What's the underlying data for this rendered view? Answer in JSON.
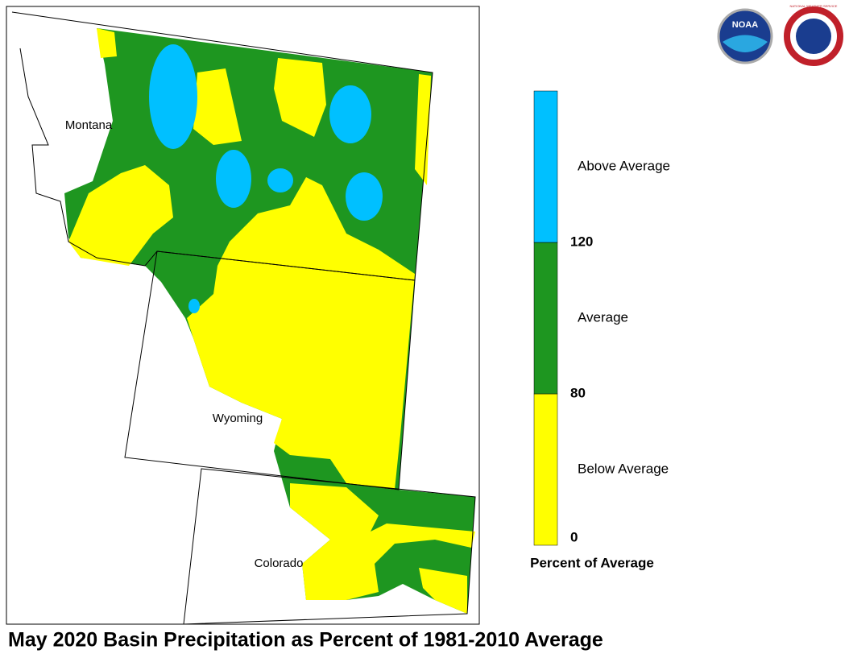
{
  "title": "May 2020 Basin Precipitation as Percent of 1981-2010 Average",
  "map": {
    "labels": [
      "Montana",
      "Wyoming",
      "Colorado"
    ]
  },
  "legend": {
    "title": "Percent of Average",
    "bins": [
      {
        "label": "Below Average",
        "color": "#ffff00"
      },
      {
        "label": "Average",
        "color": "#1e9620"
      },
      {
        "label": "Above Average",
        "color": "#00c0ff"
      }
    ],
    "ticks": [
      0,
      80,
      120
    ]
  },
  "logos": {
    "noaa": "NOAA",
    "nws": "NATIONAL WEATHER SERVICE"
  }
}
